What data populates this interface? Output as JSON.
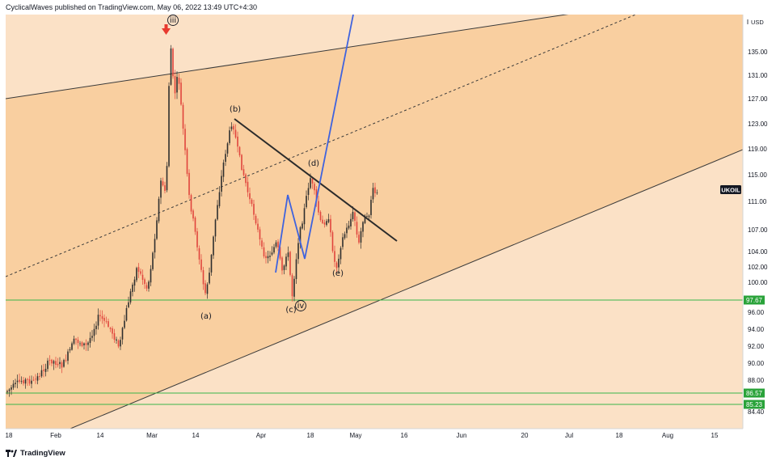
{
  "header": {
    "publisher": "CyclicalWaves",
    "published_on": "published on TradingView.com,",
    "date": "May 06, 2022 13:49 UTC+4:30"
  },
  "footer": {
    "brand": "TradingView",
    "logo_icon": "tradingview-logo-icon"
  },
  "chart_data": {
    "type": "candlestick",
    "symbol": "UKOIL",
    "currency": "USD",
    "y_ticks": [
      "135.00",
      "131.00",
      "127.00",
      "123.00",
      "119.00",
      "115.00",
      "111.00",
      "107.00",
      "104.00",
      "102.00",
      "100.00",
      "96.00",
      "94.00",
      "92.00",
      "90.00",
      "88.00",
      "84.40"
    ],
    "x_ticks": [
      "18",
      "Feb",
      "14",
      "Mar",
      "14",
      "Apr",
      "18",
      "May",
      "16",
      "Jun",
      "20",
      "Jul",
      "18",
      "Aug",
      "15"
    ],
    "price_labels": [
      {
        "text": "97.67",
        "value": 97.67
      },
      {
        "text": "86.57",
        "value": 86.57
      },
      {
        "text": "85.23",
        "value": 85.23
      }
    ],
    "wave_labels": [
      {
        "text": "iii",
        "circled": true
      },
      {
        "text": "(b)"
      },
      {
        "text": "(d)"
      },
      {
        "text": "(a)"
      },
      {
        "text": "(c)"
      },
      {
        "text": "iv",
        "circled": true
      },
      {
        "text": "(e)"
      }
    ],
    "colors": {
      "up": "#2e2e2e",
      "down": "#e0443c",
      "channel_fill": "#f9cfa0",
      "background_fill": "#fbe1c6",
      "support_lines": "#3ab54a",
      "projection": "#3f63de",
      "label_bg": "#2aa33a",
      "symbol_bg": "#131722",
      "marker": "#e8392e"
    }
  }
}
